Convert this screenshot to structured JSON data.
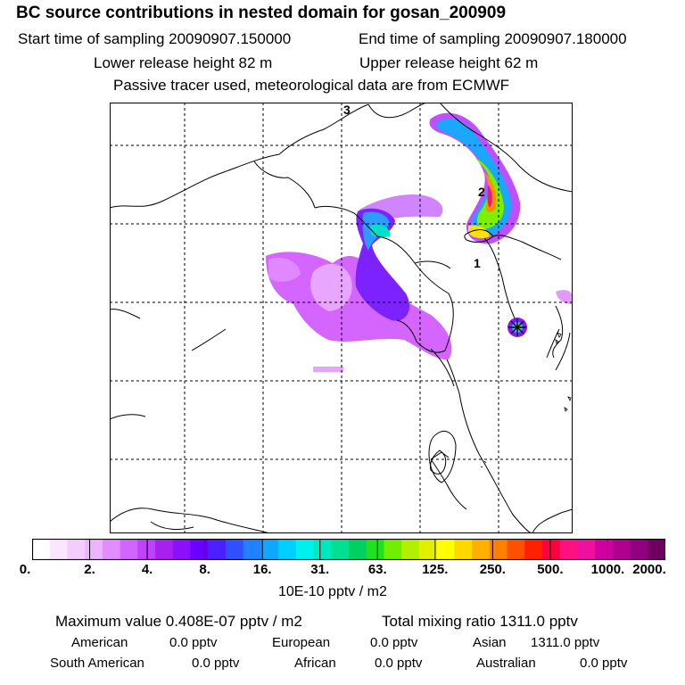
{
  "header": {
    "title": "BC  source contributions in nested domain for gosan_200909",
    "start": "Start time of sampling 20090907.150000",
    "end": "End time of sampling 20090907.180000",
    "lower": "Lower release height   82 m",
    "upper": "Upper release height   62 m",
    "note": "Passive tracer used, meteorological data are from ECMWF"
  },
  "map": {
    "labels": [
      "3",
      "2",
      "1"
    ],
    "receptor_icon": "star-marker-icon"
  },
  "colorbar": {
    "ticks": [
      "0.",
      "2.",
      "4.",
      "8.",
      "16.",
      "31.",
      "63.",
      "125.",
      "250.",
      "500.",
      "1000.",
      "2000."
    ],
    "units": "10E-10 pptv / m2",
    "colors": [
      "#ffffff",
      "#fbe6ff",
      "#f5ccff",
      "#eeb3ff",
      "#e38cff",
      "#d066ff",
      "#c040ff",
      "#a820f0",
      "#8a10ff",
      "#6a00ff",
      "#4a20ff",
      "#3050ff",
      "#2080ff",
      "#10a8ff",
      "#00d0ff",
      "#00f0f0",
      "#00e8c0",
      "#00e090",
      "#00d060",
      "#20e020",
      "#70f000",
      "#b0f000",
      "#e0f000",
      "#ffff00",
      "#ffd800",
      "#ffb000",
      "#ff8000",
      "#ff5000",
      "#ff2000",
      "#ff0040",
      "#ff1080",
      "#f010a0",
      "#d000a0",
      "#b00090",
      "#900080",
      "#700060"
    ]
  },
  "footer": {
    "max_value": "Maximum value  0.408E-07 pptv / m2",
    "total": "Total mixing ratio     1311.0 pptv",
    "sources": [
      {
        "name": "American",
        "value": "0.0 pptv"
      },
      {
        "name": "European",
        "value": "0.0 pptv"
      },
      {
        "name": "Asian",
        "value": "1311.0 pptv"
      },
      {
        "name": "South American",
        "value": "0.0 pptv"
      },
      {
        "name": "African",
        "value": "0.0 pptv"
      },
      {
        "name": "Australian",
        "value": "0.0 pptv"
      }
    ]
  }
}
